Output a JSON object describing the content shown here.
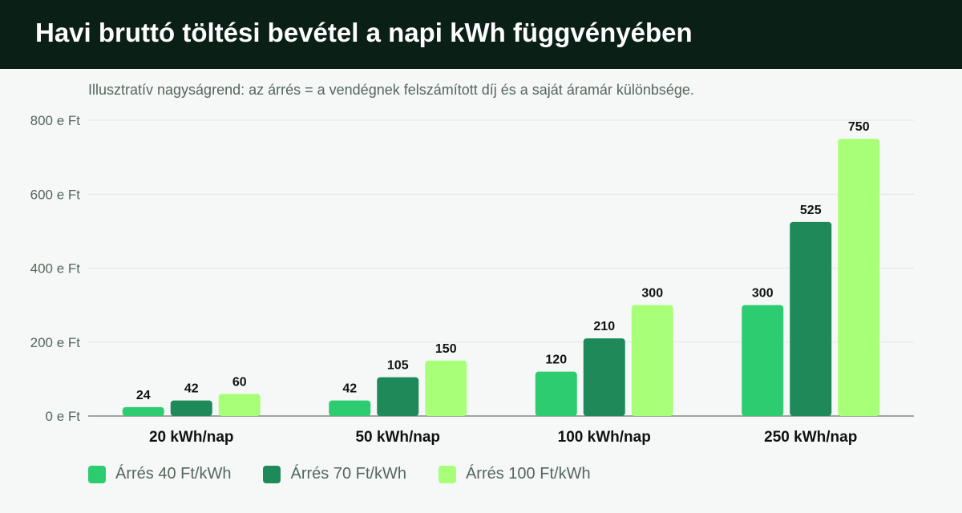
{
  "header": {
    "title": "Havi bruttó töltési bevétel a napi kWh függvényében"
  },
  "subtitle": "Illusztratív nagyságrend: az árrés = a vendégnek felszámított díj és a saját áramár különbsége.",
  "colors": {
    "header_bg": "#0a1f16",
    "series": [
      "#2ecc71",
      "#1e8a5a",
      "#a8ff78"
    ]
  },
  "chart_data": {
    "type": "bar",
    "categories": [
      "20 kWh/nap",
      "50 kWh/nap",
      "100 kWh/nap",
      "250 kWh/nap"
    ],
    "series": [
      {
        "name": "Árrés 40 Ft/kWh",
        "values": [
          24,
          42,
          120,
          300
        ]
      },
      {
        "name": "Árrés 70 Ft/kWh",
        "values": [
          42,
          105,
          210,
          525
        ]
      },
      {
        "name": "Árrés 100 Ft/kWh",
        "values": [
          60,
          150,
          300,
          750
        ]
      }
    ],
    "ylim": [
      0,
      800
    ],
    "yticks": [
      0,
      200,
      400,
      600,
      800
    ],
    "ytick_labels": [
      "0 e Ft",
      "200 e Ft",
      "400 e Ft",
      "600 e Ft",
      "800 e Ft"
    ],
    "grid": true,
    "legend": "bottom-left"
  }
}
